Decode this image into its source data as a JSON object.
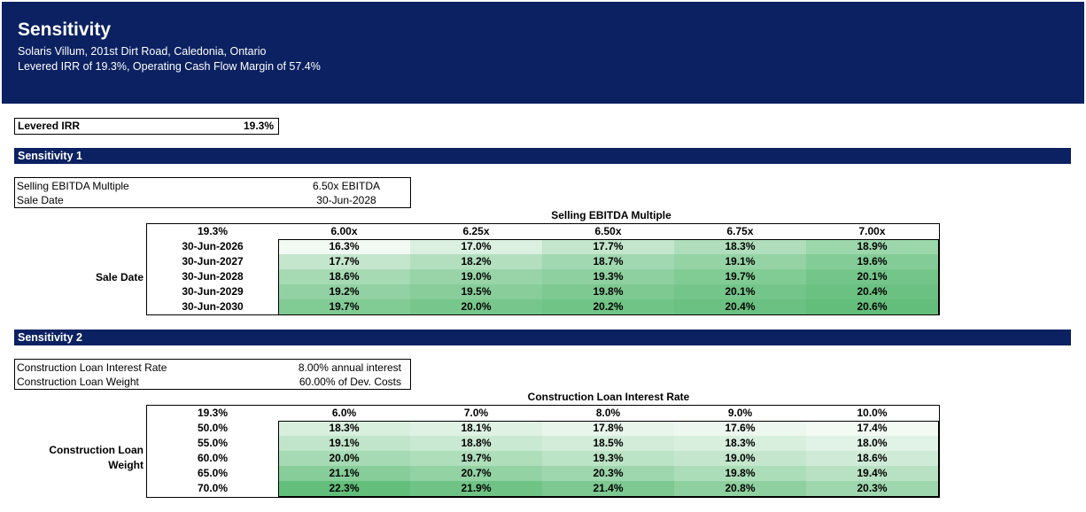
{
  "banner": {
    "title": "Sensitivity",
    "line1": "Solaris Villum, 201st Dirt Road, Caledonia, Ontario",
    "line2": "Levered IRR of 19.3%, Operating Cash Flow Margin of 57.4%"
  },
  "irr_box": {
    "label": "Levered IRR",
    "value": "19.3%"
  },
  "sensitivity1": {
    "header": "Sensitivity 1",
    "inputs": [
      {
        "label": "Selling EBITDA Multiple",
        "value": "6.50x EBITDA"
      },
      {
        "label": "Sale Date",
        "value": "30-Jun-2028"
      }
    ],
    "col_axis_title": "Selling EBITDA Multiple",
    "row_axis_title": "Sale Date",
    "corner": "19.3%",
    "columns": [
      "6.00x",
      "6.25x",
      "6.50x",
      "6.75x",
      "7.00x"
    ],
    "rows": [
      {
        "label": "30-Jun-2026",
        "values": [
          "16.3%",
          "17.0%",
          "17.7%",
          "18.3%",
          "18.9%"
        ]
      },
      {
        "label": "30-Jun-2027",
        "values": [
          "17.7%",
          "18.2%",
          "18.7%",
          "19.1%",
          "19.6%"
        ]
      },
      {
        "label": "30-Jun-2028",
        "values": [
          "18.6%",
          "19.0%",
          "19.3%",
          "19.7%",
          "20.1%"
        ]
      },
      {
        "label": "30-Jun-2029",
        "values": [
          "19.2%",
          "19.5%",
          "19.8%",
          "20.1%",
          "20.4%"
        ]
      },
      {
        "label": "30-Jun-2030",
        "values": [
          "19.7%",
          "20.0%",
          "20.2%",
          "20.4%",
          "20.6%"
        ]
      }
    ]
  },
  "sensitivity2": {
    "header": "Sensitivity 2",
    "inputs": [
      {
        "label": "Construction Loan Interest Rate",
        "value": "8.00% annual interest"
      },
      {
        "label": "Construction Loan Weight",
        "value": "60.00% of Dev. Costs"
      }
    ],
    "col_axis_title": "Construction Loan Interest Rate",
    "row_axis_title_line1": "Construction Loan",
    "row_axis_title_line2": "Weight",
    "corner": "19.3%",
    "columns": [
      "6.0%",
      "7.0%",
      "8.0%",
      "9.0%",
      "10.0%"
    ],
    "rows": [
      {
        "label": "50.0%",
        "values": [
          "18.3%",
          "18.1%",
          "17.8%",
          "17.6%",
          "17.4%"
        ]
      },
      {
        "label": "55.0%",
        "values": [
          "19.1%",
          "18.8%",
          "18.5%",
          "18.3%",
          "18.0%"
        ]
      },
      {
        "label": "60.0%",
        "values": [
          "20.0%",
          "19.7%",
          "19.3%",
          "19.0%",
          "18.6%"
        ]
      },
      {
        "label": "65.0%",
        "values": [
          "21.1%",
          "20.7%",
          "20.3%",
          "19.8%",
          "19.4%"
        ]
      },
      {
        "label": "70.0%",
        "values": [
          "22.3%",
          "21.9%",
          "21.4%",
          "20.8%",
          "20.3%"
        ]
      }
    ]
  },
  "heat_colors": {
    "low": "#ffffff",
    "high": "#63be7b"
  }
}
